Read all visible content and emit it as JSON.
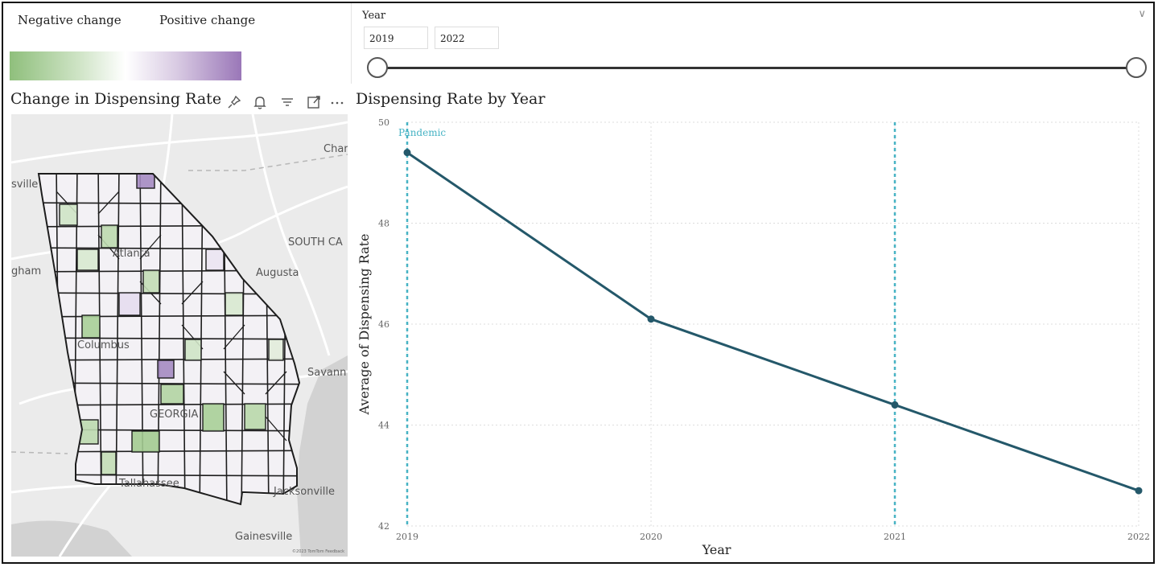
{
  "legend": {
    "negative_label": "Negative change",
    "positive_label": "Positive change",
    "colors": {
      "negative": "#8fbf7c",
      "neutral": "#ffffff",
      "positive": "#9a77b8"
    }
  },
  "slicer": {
    "title": "Year",
    "start_value": "2019",
    "end_value": "2022",
    "range": [
      2019,
      2022
    ],
    "selected": [
      2019,
      2022
    ]
  },
  "map_visual": {
    "title": "Change in Dispensing Rate",
    "toolbar_icons": [
      "pin-icon",
      "bell-icon",
      "filter-icon",
      "focus-mode-icon",
      "more-options-icon"
    ],
    "labels": {
      "charlotte": "Char",
      "nashville": "sville",
      "birmingham": "gham",
      "atlanta": "Atlanta",
      "south_carolina": "SOUTH CA",
      "augusta": "Augusta",
      "columbus": "Columbus",
      "savannah": "Savann",
      "georgia": "GEORGIA",
      "tallahassee": "Tallahassee",
      "jacksonville": "Jacksonville",
      "gainesville": "Gainesville"
    },
    "attribution": "©2023 TomTom  Feedback"
  },
  "line_chart": {
    "title": "Dispensing Rate by Year",
    "colors": {
      "line": "#24586a",
      "annotation": "#47b3c4",
      "grid": "#dddddd"
    }
  },
  "chart_data": {
    "type": "line",
    "title": "Dispensing Rate by Year",
    "xlabel": "Year",
    "ylabel": "Average of Dispensing Rate",
    "x": [
      2019,
      2020,
      2021,
      2022
    ],
    "y": [
      49.4,
      46.1,
      44.4,
      42.7
    ],
    "xticks": [
      "2019",
      "2020",
      "2021",
      "2022"
    ],
    "yticks": [
      42,
      44,
      46,
      48,
      50
    ],
    "ylim": [
      42,
      50
    ],
    "grid": true,
    "annotations": [
      {
        "x": 2019,
        "label": "Pandemic"
      },
      {
        "x": 2021,
        "label": ""
      }
    ]
  }
}
